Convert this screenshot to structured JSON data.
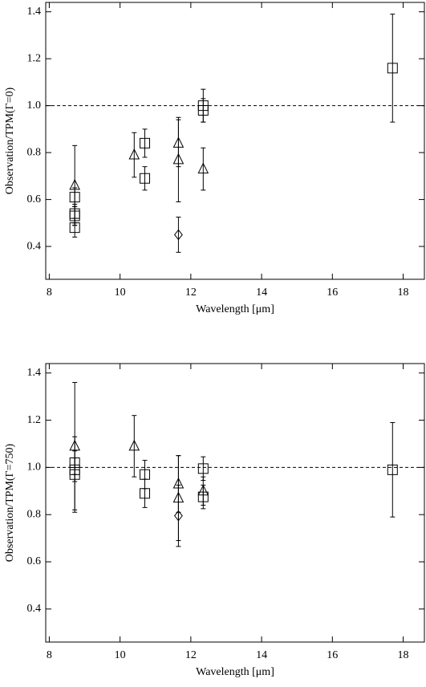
{
  "chart_data": [
    {
      "type": "scatter",
      "xlabel": "Wavelength [μm]",
      "ylabel": "Observation/TPM(Γ=0)",
      "xlim": [
        7.9,
        18.6
      ],
      "ylim": [
        0.26,
        1.44
      ],
      "xticks": [
        8,
        10,
        12,
        14,
        16,
        18
      ],
      "yticks": [
        0.4,
        0.6,
        0.8,
        1.0,
        1.2,
        1.4
      ],
      "yticklabels_fmt": null,
      "hline": 1.0,
      "series": [
        {
          "marker": "triangle",
          "color": "#000000",
          "x": [
            8.72,
            10.4,
            11.65,
            11.65,
            12.35
          ],
          "values": [
            0.66,
            0.79,
            0.84,
            0.77,
            0.73
          ],
          "errors": [
            0.17,
            0.095,
            0.1,
            0.18,
            0.09
          ]
        },
        {
          "marker": "square",
          "color": "#000000",
          "x": [
            8.72,
            8.72,
            8.72,
            8.72,
            10.7,
            10.7,
            12.35,
            12.35,
            17.7
          ],
          "values": [
            0.61,
            0.54,
            0.53,
            0.48,
            0.84,
            0.69,
            1.0,
            0.98,
            1.16
          ],
          "errors": [
            0.04,
            0.04,
            0.04,
            0.04,
            0.06,
            0.05,
            0.07,
            0.05,
            0.23
          ]
        },
        {
          "marker": "diamond",
          "color": "#000000",
          "x": [
            11.65
          ],
          "values": [
            0.45
          ],
          "errors": [
            0.075
          ]
        }
      ]
    },
    {
      "type": "scatter",
      "xlabel": "Wavelength [μm]",
      "ylabel": "Observation/TPM(Γ=750)",
      "xlim": [
        7.9,
        18.6
      ],
      "ylim": [
        0.26,
        1.44
      ],
      "xticks": [
        8,
        10,
        12,
        14,
        16,
        18
      ],
      "yticks": [
        0.4,
        0.6,
        0.8,
        1.0,
        1.2,
        1.4
      ],
      "yticklabels_fmt": null,
      "hline": 1.0,
      "series": [
        {
          "marker": "triangle",
          "color": "#000000",
          "x": [
            8.72,
            10.4,
            11.65,
            11.65,
            12.35
          ],
          "values": [
            1.09,
            1.09,
            0.93,
            0.87,
            0.9
          ],
          "errors": [
            0.27,
            0.13,
            0.12,
            0.18,
            0.06
          ]
        },
        {
          "marker": "square",
          "color": "#000000",
          "x": [
            8.72,
            8.72,
            8.72,
            10.7,
            10.7,
            12.35,
            12.35,
            17.7
          ],
          "values": [
            1.02,
            0.99,
            0.97,
            0.97,
            0.89,
            0.995,
            0.875,
            0.99
          ],
          "errors": [
            0.05,
            0.05,
            0.16,
            0.06,
            0.06,
            0.05,
            0.05,
            0.2
          ]
        },
        {
          "marker": "diamond",
          "color": "#000000",
          "x": [
            11.65
          ],
          "values": [
            0.795
          ],
          "errors": [
            0.13
          ]
        }
      ]
    }
  ]
}
